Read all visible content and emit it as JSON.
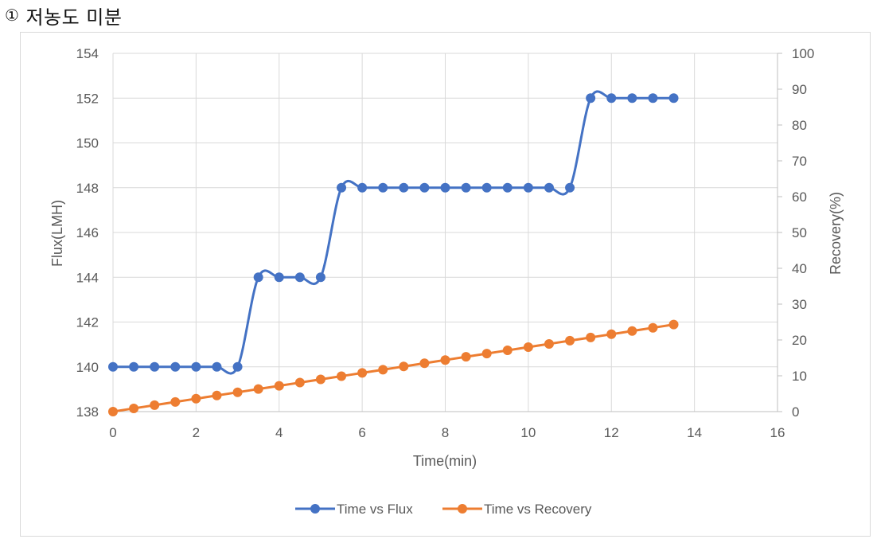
{
  "heading": {
    "number": "①",
    "text": "저농도 미분"
  },
  "chart_data": {
    "type": "line",
    "title": "",
    "xlabel": "Time(min)",
    "ylabel": "Flux(LMH)",
    "y2label": "Recovery(%)",
    "xlim": [
      0,
      16
    ],
    "ylim": [
      138,
      154
    ],
    "y2lim": [
      0,
      100
    ],
    "x_ticks": [
      "0",
      "2",
      "4",
      "6",
      "8",
      "10",
      "12",
      "14",
      "16"
    ],
    "y_ticks": [
      "138",
      "140",
      "142",
      "144",
      "146",
      "148",
      "150",
      "152",
      "154"
    ],
    "y2_ticks": [
      "0",
      "10",
      "20",
      "30",
      "40",
      "50",
      "60",
      "70",
      "80",
      "90",
      "100"
    ],
    "grid": true,
    "legend_position": "bottom",
    "x": [
      0,
      0.5,
      1,
      1.5,
      2,
      2.5,
      3,
      3.5,
      4,
      4.5,
      5,
      5.5,
      6,
      6.5,
      7,
      7.5,
      8,
      8.5,
      9,
      9.5,
      10,
      10.5,
      11,
      11.5,
      12,
      12.5,
      13,
      13.5
    ],
    "series": [
      {
        "name": "Time vs Flux",
        "axis": "left",
        "color": "#4472C4",
        "values": [
          140,
          140,
          140,
          140,
          140,
          140,
          140,
          144,
          144,
          144,
          144,
          148,
          148,
          148,
          148,
          148,
          148,
          148,
          148,
          148,
          148,
          148,
          148,
          152,
          152,
          152,
          152,
          152
        ]
      },
      {
        "name": "Time vs Recovery",
        "axis": "right",
        "color": "#ED7D31",
        "values": [
          0,
          0.9,
          1.8,
          2.7,
          3.6,
          4.5,
          5.4,
          6.3,
          7.2,
          8.1,
          9.0,
          9.9,
          10.8,
          11.7,
          12.6,
          13.5,
          14.4,
          15.3,
          16.2,
          17.1,
          18.0,
          18.9,
          19.8,
          20.7,
          21.6,
          22.5,
          23.4,
          24.3
        ]
      }
    ]
  }
}
